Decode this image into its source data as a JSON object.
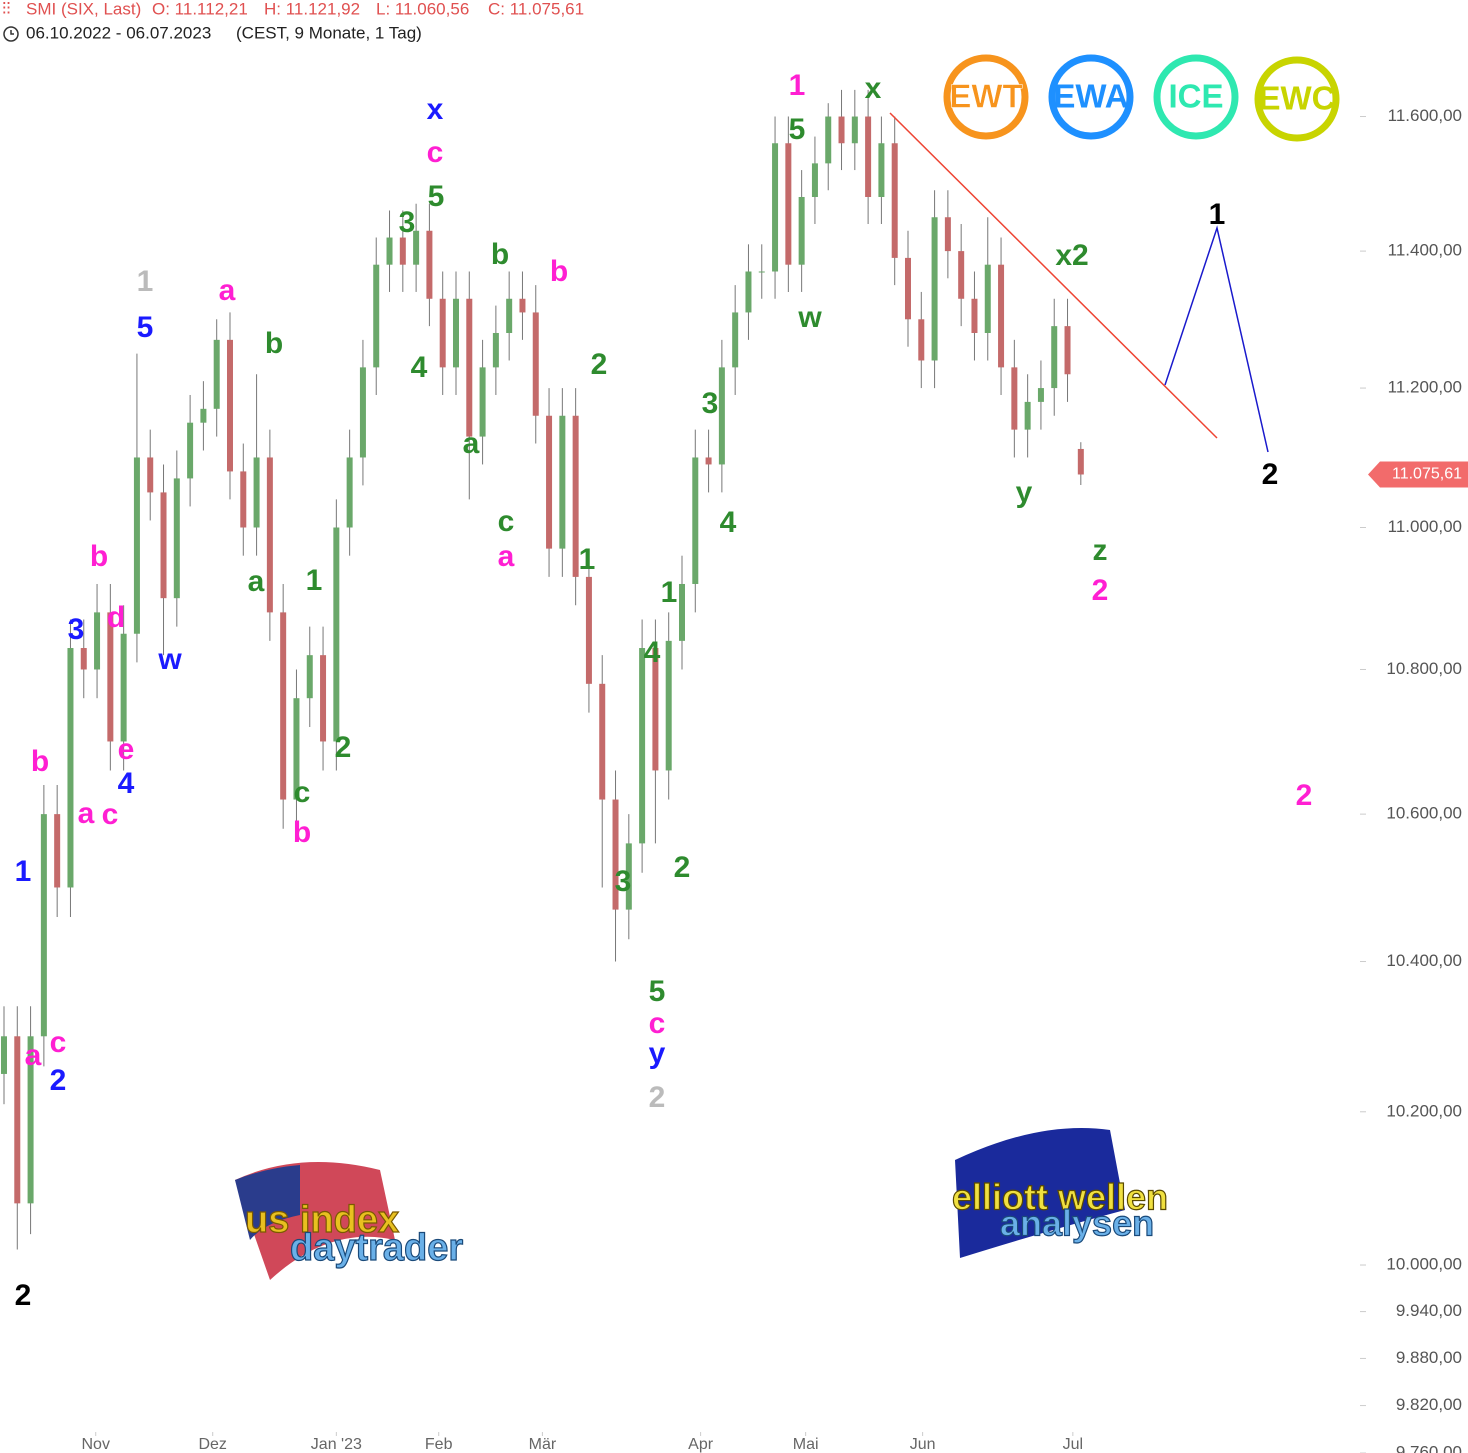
{
  "header": {
    "symbol": "SMI (SIX, Last)",
    "open": "O: 11.112,21",
    "high": "H: 11.121,92",
    "low": "L: 11.060,56",
    "close": "C: 11.075,61",
    "range": "06.10.2022 - 06.07.2023",
    "info": "(CEST, 9 Monate, 1 Tag)"
  },
  "badges": [
    "EWT",
    "EWA",
    "ICE",
    "EWC"
  ],
  "logos": [
    {
      "line1": "us index",
      "line2": "daytrader"
    },
    {
      "line1": "elliott wellen",
      "line2": "analysen"
    }
  ],
  "chart_data": {
    "type": "candlestick",
    "log_scale": true,
    "up_color": "#6aa86a",
    "down_color": "#c46a6a",
    "last_price_label": "11.075,61",
    "last_price_color": "#f26b6b",
    "xlim": [
      -0.3,
      102
    ],
    "xticks": [
      {
        "value": 6.9,
        "label": "Nov"
      },
      {
        "value": 15.7,
        "label": "Dez"
      },
      {
        "value": 25,
        "label": "Jan '23"
      },
      {
        "value": 32.7,
        "label": "Feb"
      },
      {
        "value": 40.5,
        "label": "Mär"
      },
      {
        "value": 52.4,
        "label": "Apr"
      },
      {
        "value": 60.3,
        "label": "Mai"
      },
      {
        "value": 69.1,
        "label": "Jun"
      },
      {
        "value": 80.4,
        "label": "Jul"
      }
    ],
    "ylim": [
      9760,
      11776
    ],
    "yticks": [
      {
        "value": 9760,
        "label": "9.760,00"
      },
      {
        "value": 9820,
        "label": "9.820,00"
      },
      {
        "value": 9880,
        "label": "9.880,00"
      },
      {
        "value": 9940,
        "label": "9.940,00"
      },
      {
        "value": 10000,
        "label": "10.000,00"
      },
      {
        "value": 10200,
        "label": "10.200,00"
      },
      {
        "value": 10400,
        "label": "10.400,00"
      },
      {
        "value": 10600,
        "label": "10.600,00"
      },
      {
        "value": 10800,
        "label": "10.800,00"
      },
      {
        "value": 11000,
        "label": "11.000,00"
      },
      {
        "value": 11200,
        "label": "11.200,00"
      },
      {
        "value": 11400,
        "label": "11.400,00"
      },
      {
        "value": 11600,
        "label": "11.600,00"
      }
    ],
    "open": [
      10250,
      10300,
      10080,
      10300,
      10600,
      10500,
      10830,
      10800,
      10880,
      10700,
      10850,
      11100,
      11050,
      10900,
      11070,
      11150,
      11170,
      11270,
      11080,
      11000,
      11100,
      10880,
      10620,
      10760,
      10820,
      10700,
      11000,
      11100,
      11230,
      11380,
      11420,
      11380,
      11430,
      11330,
      11230,
      11330,
      11130,
      11230,
      11280,
      11330,
      11310,
      11160,
      10970,
      11160,
      10930,
      10780,
      10620,
      10470,
      10560,
      10830,
      10660,
      10840,
      10920,
      11100,
      11090,
      11230,
      11310,
      11370,
      11370,
      11560,
      11380,
      11480,
      11530,
      11600,
      11560,
      11600,
      11480,
      11560,
      11390,
      11300,
      11240,
      11450,
      11400,
      11330,
      11280,
      11380,
      11230,
      11140,
      11180,
      11200,
      11290,
      11112.21
    ],
    "high": [
      10340,
      10340,
      10340,
      10640,
      10640,
      10870,
      10870,
      10920,
      10920,
      10890,
      11250,
      11140,
      11090,
      11110,
      11190,
      11210,
      11300,
      11310,
      11120,
      11220,
      11140,
      10920,
      10800,
      10860,
      10860,
      11040,
      11140,
      11270,
      11420,
      11460,
      11460,
      11470,
      11470,
      11370,
      11370,
      11370,
      11270,
      11320,
      11370,
      11370,
      11350,
      11200,
      11200,
      11200,
      10970,
      10820,
      10660,
      10600,
      10870,
      10870,
      10880,
      10960,
      11140,
      11140,
      11270,
      11350,
      11410,
      11410,
      11600,
      11600,
      11520,
      11570,
      11620,
      11640,
      11640,
      11640,
      11600,
      11600,
      11430,
      11340,
      11490,
      11490,
      11440,
      11370,
      11450,
      11420,
      11270,
      11220,
      11240,
      11330,
      11330,
      11121.92
    ],
    "low": [
      10210,
      10020,
      10040,
      10260,
      10460,
      10460,
      10760,
      10760,
      10660,
      10660,
      10810,
      11010,
      10820,
      10860,
      11030,
      11110,
      11130,
      11040,
      10960,
      10960,
      10840,
      10580,
      10580,
      10720,
      10660,
      10660,
      10960,
      11060,
      11190,
      11340,
      11340,
      11340,
      11290,
      11190,
      11190,
      11040,
      11090,
      11190,
      11240,
      11270,
      11120,
      10930,
      10930,
      10890,
      10740,
      10500,
      10400,
      10430,
      10520,
      10560,
      10620,
      10800,
      10880,
      11050,
      11050,
      11190,
      11270,
      11330,
      11330,
      11340,
      11340,
      11440,
      11490,
      11520,
      11520,
      11440,
      11440,
      11350,
      11260,
      11200,
      11200,
      11360,
      11290,
      11240,
      11240,
      11190,
      11100,
      11100,
      11140,
      11160,
      11180,
      11060.56
    ],
    "close": [
      10300,
      10080,
      10300,
      10600,
      10500,
      10830,
      10800,
      10880,
      10700,
      10850,
      11100,
      11050,
      10900,
      11070,
      11150,
      11170,
      11270,
      11080,
      11000,
      11100,
      10880,
      10620,
      10760,
      10820,
      10700,
      11000,
      11100,
      11230,
      11380,
      11420,
      11380,
      11430,
      11330,
      11230,
      11330,
      11130,
      11230,
      11280,
      11330,
      11310,
      11160,
      10970,
      11160,
      10930,
      10780,
      10620,
      10470,
      10560,
      10830,
      10660,
      10840,
      10920,
      11100,
      11090,
      11230,
      11310,
      11370,
      11370,
      11560,
      11380,
      11480,
      11530,
      11600,
      11560,
      11600,
      11480,
      11560,
      11390,
      11300,
      11240,
      11450,
      11400,
      11330,
      11280,
      11380,
      11230,
      11140,
      11180,
      11200,
      11290,
      11220,
      11075.61
    ],
    "annotations": [
      {
        "text": "1",
        "color": "#bbbbbb"
      },
      {
        "text": "5",
        "color": "#1a1aff"
      },
      {
        "text": "a",
        "color": "#ff1fd2"
      },
      {
        "text": "b",
        "color": "#2e8b2e"
      },
      {
        "text": "b",
        "color": "#ff1fd2"
      },
      {
        "text": "3",
        "color": "#1a1aff"
      },
      {
        "text": "d",
        "color": "#ff1fd2"
      },
      {
        "text": "w",
        "color": "#1a1aff"
      },
      {
        "text": "b",
        "color": "#ff1fd2"
      },
      {
        "text": "e",
        "color": "#ff1fd2"
      },
      {
        "text": "4",
        "color": "#1a1aff"
      },
      {
        "text": "a",
        "color": "#ff1fd2"
      },
      {
        "text": "c",
        "color": "#ff1fd2"
      },
      {
        "text": "1",
        "color": "#1a1aff"
      },
      {
        "text": "c",
        "color": "#ff1fd2"
      },
      {
        "text": "a",
        "color": "#ff1fd2"
      },
      {
        "text": "2",
        "color": "#1a1aff"
      },
      {
        "text": "2",
        "color": "#000000"
      },
      {
        "text": "a",
        "color": "#2e8b2e"
      },
      {
        "text": "1",
        "color": "#2e8b2e"
      },
      {
        "text": "2",
        "color": "#2e8b2e"
      },
      {
        "text": "c",
        "color": "#2e8b2e"
      },
      {
        "text": "b",
        "color": "#ff1fd2"
      },
      {
        "text": "x",
        "color": "#1a1aff"
      },
      {
        "text": "c",
        "color": "#ff1fd2"
      },
      {
        "text": "5",
        "color": "#2e8b2e"
      },
      {
        "text": "3",
        "color": "#2e8b2e"
      },
      {
        "text": "4",
        "color": "#2e8b2e"
      },
      {
        "text": "b",
        "color": "#2e8b2e"
      },
      {
        "text": "b",
        "color": "#ff1fd2"
      },
      {
        "text": "a",
        "color": "#2e8b2e"
      },
      {
        "text": "c",
        "color": "#2e8b2e"
      },
      {
        "text": "a",
        "color": "#ff1fd2"
      },
      {
        "text": "2",
        "color": "#2e8b2e"
      },
      {
        "text": "1",
        "color": "#2e8b2e"
      },
      {
        "text": "1",
        "color": "#2e8b2e"
      },
      {
        "text": "4",
        "color": "#2e8b2e"
      },
      {
        "text": "3",
        "color": "#2e8b2e"
      },
      {
        "text": "2",
        "color": "#2e8b2e"
      },
      {
        "text": "5",
        "color": "#2e8b2e"
      },
      {
        "text": "c",
        "color": "#ff1fd2"
      },
      {
        "text": "y",
        "color": "#1a1aff"
      },
      {
        "text": "2",
        "color": "#bbbbbb"
      },
      {
        "text": "3",
        "color": "#2e8b2e"
      },
      {
        "text": "4",
        "color": "#2e8b2e"
      },
      {
        "text": "1",
        "color": "#ff1fd2"
      },
      {
        "text": "x",
        "color": "#2e8b2e"
      },
      {
        "text": "5",
        "color": "#2e8b2e"
      },
      {
        "text": "w",
        "color": "#2e8b2e"
      },
      {
        "text": "x2",
        "color": "#2e8b2e"
      },
      {
        "text": "1",
        "color": "#000000"
      },
      {
        "text": "2",
        "color": "#000000"
      },
      {
        "text": "y",
        "color": "#2e8b2e"
      },
      {
        "text": "z",
        "color": "#2e8b2e"
      },
      {
        "text": "2",
        "color": "#ff1fd2"
      },
      {
        "text": "2",
        "color": "#ff1fd2"
      }
    ]
  }
}
